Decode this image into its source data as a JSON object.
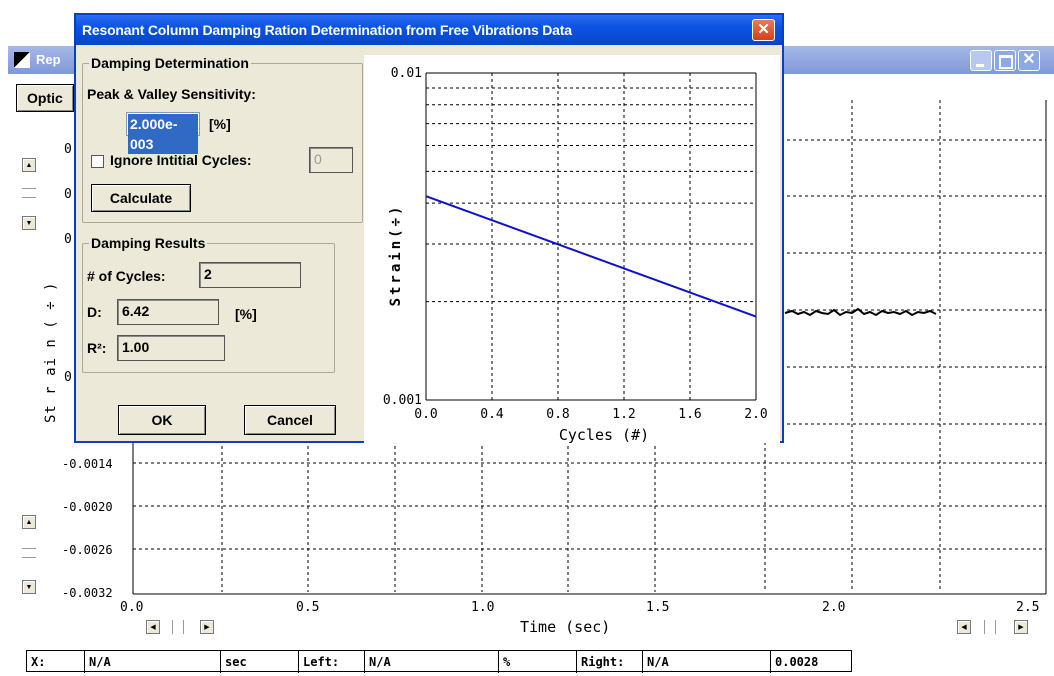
{
  "main_window": {
    "title": "Rep",
    "menu_button": "Optic",
    "plot": {
      "y_axis_label": "St r ai n ( ÷ )",
      "y_ticks": [
        "-0.0014",
        "-0.0020",
        "-0.0026",
        "-0.0032"
      ],
      "partial_y_ticks": [
        "0",
        "0",
        "0",
        "0"
      ],
      "x_ticks": [
        "0.0",
        "0.5",
        "1.0",
        "1.5",
        "2.0",
        "2.5"
      ],
      "x_axis_label": "Time (sec)"
    },
    "status_bar": {
      "x_label": "X:",
      "x_value": "N/A",
      "x_unit": "sec",
      "left_label": "Left:",
      "left_value": "N/A",
      "left_unit": "%",
      "right_label": "Right:",
      "right_value": "N/A",
      "right_extra": "0.0028"
    }
  },
  "dialog": {
    "title": "Resonant Column Damping Ration Determination from Free Vibrations Data",
    "damping_determination": {
      "group_title": "Damping Determination",
      "sensitivity_label": "Peak & Valley Sensitivity:",
      "sensitivity_value": "2.000e-003",
      "sensitivity_unit": "[%]",
      "ignore_label": "Ignore Intitial Cycles:",
      "ignore_checked": false,
      "ignore_value": "0",
      "calculate_button": "Calculate"
    },
    "damping_results": {
      "group_title": "Damping Results",
      "cycles_label": "# of Cycles:",
      "cycles_value": "2",
      "d_label": "D:",
      "d_value": "6.42",
      "d_unit": "[%]",
      "r2_label": "R²:",
      "r2_value": "1.00"
    },
    "ok_button": "OK",
    "cancel_button": "Cancel"
  },
  "chart_data": {
    "type": "line",
    "title": "",
    "xlabel": "Cycles (#)",
    "ylabel": "Strain(÷)",
    "xlim": [
      0.0,
      2.0
    ],
    "ylim": [
      0.001,
      0.01
    ],
    "y_scale": "log",
    "x_ticks": [
      "0.0",
      "0.4",
      "0.8",
      "1.2",
      "1.6",
      "2.0"
    ],
    "y_ticks": [
      "0.01",
      "0.001"
    ],
    "grid": true,
    "series": [
      {
        "x": [
          0.0,
          2.0
        ],
        "y": [
          0.0042,
          0.0018
        ],
        "color": "#1010d0"
      }
    ]
  },
  "colors": {
    "dialog_title_bar": "#0a54e3",
    "dialog_body": "#ece9d8",
    "close_button": "#e04020",
    "series_line": "#1010d0"
  }
}
